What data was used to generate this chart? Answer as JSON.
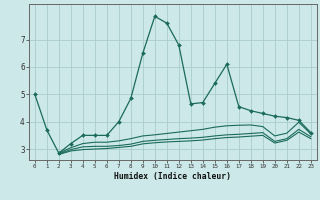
{
  "title": "",
  "xlabel": "Humidex (Indice chaleur)",
  "bg_color": "#cce8e8",
  "grid_color": "#aacccc",
  "line_color": "#1a6b5a",
  "xlim": [
    -0.5,
    23.5
  ],
  "ylim": [
    2.6,
    8.3
  ],
  "xticks": [
    0,
    1,
    2,
    3,
    4,
    5,
    6,
    7,
    8,
    9,
    10,
    11,
    12,
    13,
    14,
    15,
    16,
    17,
    18,
    19,
    20,
    21,
    22,
    23
  ],
  "yticks": [
    3,
    4,
    5,
    6,
    7
  ],
  "line1_x": [
    0,
    1,
    2,
    3,
    4,
    5,
    6,
    7,
    8,
    9,
    10,
    11,
    12,
    13,
    14,
    15,
    16,
    17,
    18,
    19,
    20,
    21,
    22,
    23
  ],
  "line1_y": [
    5.0,
    3.7,
    2.85,
    3.2,
    3.5,
    3.5,
    3.5,
    4.0,
    4.85,
    6.5,
    7.85,
    7.6,
    6.8,
    4.65,
    4.7,
    5.4,
    6.1,
    4.55,
    4.4,
    4.3,
    4.2,
    4.15,
    4.05,
    3.6
  ],
  "line2_x": [
    2,
    3,
    4,
    5,
    6,
    7,
    8,
    9,
    10,
    11,
    12,
    13,
    14,
    15,
    16,
    17,
    18,
    19,
    20,
    21,
    22,
    23
  ],
  "line2_y": [
    2.85,
    3.05,
    3.2,
    3.25,
    3.25,
    3.3,
    3.38,
    3.48,
    3.52,
    3.57,
    3.62,
    3.67,
    3.72,
    3.8,
    3.85,
    3.87,
    3.88,
    3.82,
    3.48,
    3.58,
    3.98,
    3.55
  ],
  "line3_x": [
    2,
    3,
    4,
    5,
    6,
    7,
    8,
    9,
    10,
    11,
    12,
    13,
    14,
    15,
    16,
    17,
    18,
    19,
    20,
    21,
    22,
    23
  ],
  "line3_y": [
    2.82,
    2.98,
    3.08,
    3.1,
    3.1,
    3.13,
    3.18,
    3.28,
    3.32,
    3.35,
    3.38,
    3.4,
    3.43,
    3.48,
    3.52,
    3.54,
    3.57,
    3.6,
    3.28,
    3.38,
    3.72,
    3.45
  ],
  "line4_x": [
    2,
    3,
    4,
    5,
    6,
    7,
    8,
    9,
    10,
    11,
    12,
    13,
    14,
    15,
    16,
    17,
    18,
    19,
    20,
    21,
    22,
    23
  ],
  "line4_y": [
    2.8,
    2.93,
    2.98,
    3.0,
    3.02,
    3.06,
    3.1,
    3.19,
    3.23,
    3.26,
    3.28,
    3.3,
    3.33,
    3.38,
    3.42,
    3.44,
    3.47,
    3.5,
    3.22,
    3.32,
    3.62,
    3.38
  ]
}
